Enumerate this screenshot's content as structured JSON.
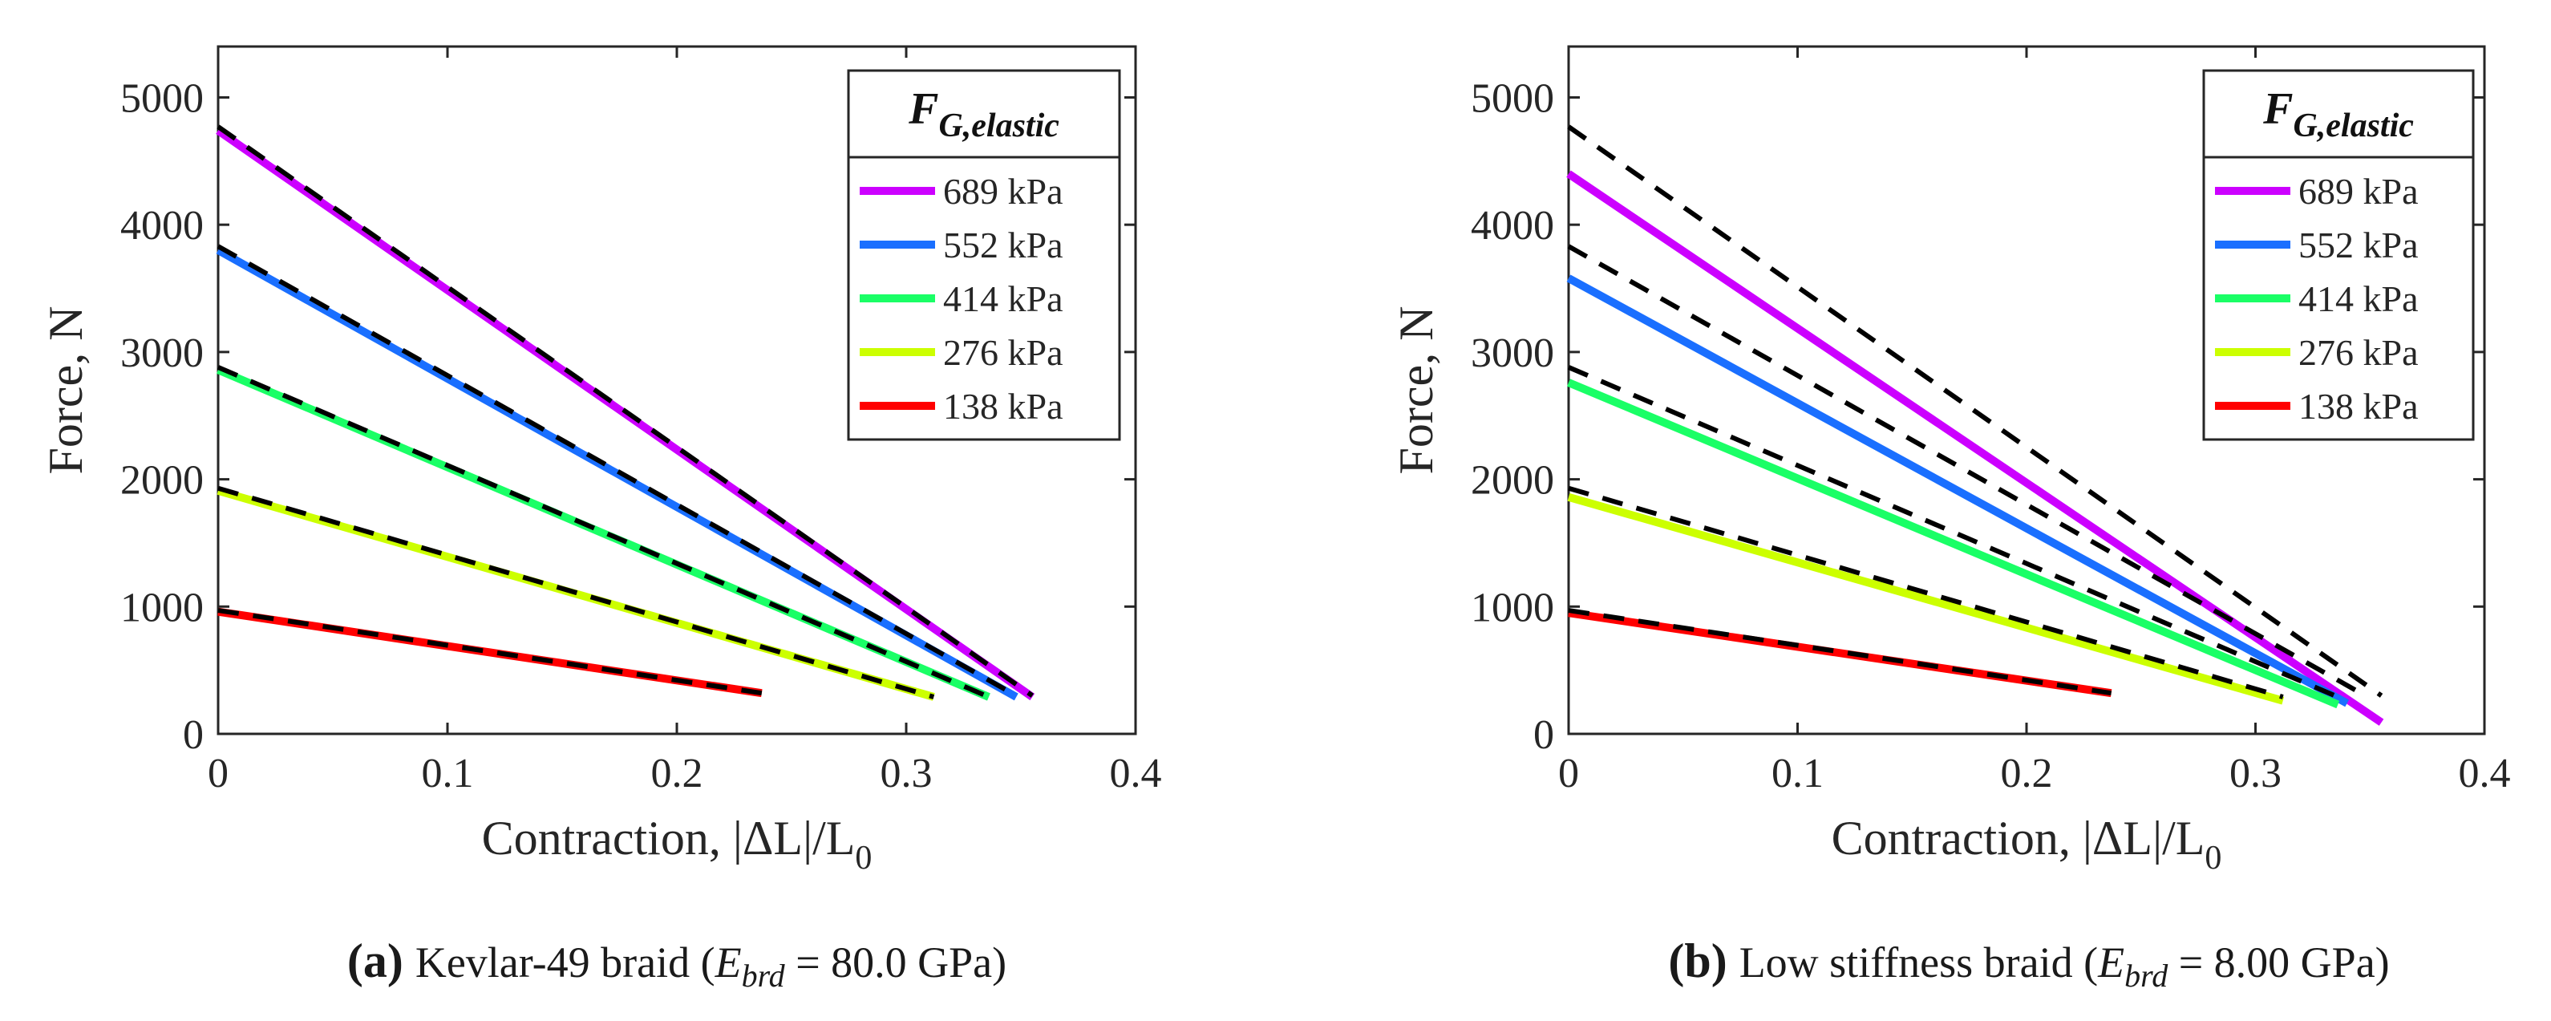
{
  "chart_data": [
    {
      "id": "a",
      "type": "line",
      "xlabel_main": "Contraction, |ΔL|/L",
      "xlabel_sub": "0",
      "ylabel": "Force, N",
      "xlim": [
        0,
        0.4
      ],
      "ylim": [
        0,
        5400
      ],
      "xticks": [
        0,
        0.1,
        0.2,
        0.3,
        0.4
      ],
      "xtick_labels": [
        "0",
        "0.1",
        "0.2",
        "0.3",
        "0.4"
      ],
      "yticks": [
        0,
        1000,
        2000,
        3000,
        4000,
        5000
      ],
      "ytick_labels": [
        "0",
        "1000",
        "2000",
        "3000",
        "4000",
        "5000"
      ],
      "grid": false,
      "legend": {
        "placement": "top-right",
        "title_main": "F",
        "title_sub": "G,elastic",
        "entries": [
          "689 kPa",
          "552 kPa",
          "414 kPa",
          "276 kPa",
          "138 kPa"
        ]
      },
      "series": [
        {
          "name": "689 kPa",
          "color": "#cc00ff",
          "x": [
            0,
            0.355
          ],
          "y": [
            4740,
            290
          ]
        },
        {
          "name": "552 kPa",
          "color": "#1a6fff",
          "x": [
            0,
            0.348
          ],
          "y": [
            3800,
            290
          ]
        },
        {
          "name": "414 kPa",
          "color": "#1aff66",
          "x": [
            0,
            0.336
          ],
          "y": [
            2860,
            290
          ]
        },
        {
          "name": "276 kPa",
          "color": "#ccff00",
          "x": [
            0,
            0.312
          ],
          "y": [
            1910,
            290
          ]
        },
        {
          "name": "138 kPa",
          "color": "#ff0000",
          "x": [
            0,
            0.237
          ],
          "y": [
            960,
            320
          ]
        }
      ],
      "reference_lines": [
        {
          "color": "#000000",
          "x": [
            0,
            0.355
          ],
          "y": [
            4770,
            300
          ]
        },
        {
          "color": "#000000",
          "x": [
            0,
            0.348
          ],
          "y": [
            3830,
            300
          ]
        },
        {
          "color": "#000000",
          "x": [
            0,
            0.336
          ],
          "y": [
            2880,
            290
          ]
        },
        {
          "color": "#000000",
          "x": [
            0,
            0.312
          ],
          "y": [
            1930,
            290
          ]
        },
        {
          "color": "#000000",
          "x": [
            0,
            0.237
          ],
          "y": [
            970,
            320
          ]
        }
      ],
      "caption_label": "(a)",
      "caption_text": "Kevlar-49 braid (",
      "caption_math_E": "E",
      "caption_math_sub": "brd",
      "caption_math_rest": " = 80.0 GPa)"
    },
    {
      "id": "b",
      "type": "line",
      "xlabel_main": "Contraction, |ΔL|/L",
      "xlabel_sub": "0",
      "ylabel": "Force, N",
      "xlim": [
        0,
        0.4
      ],
      "ylim": [
        0,
        5400
      ],
      "xticks": [
        0,
        0.1,
        0.2,
        0.3,
        0.4
      ],
      "xtick_labels": [
        "0",
        "0.1",
        "0.2",
        "0.3",
        "0.4"
      ],
      "yticks": [
        0,
        1000,
        2000,
        3000,
        4000,
        5000
      ],
      "ytick_labels": [
        "0",
        "1000",
        "2000",
        "3000",
        "4000",
        "5000"
      ],
      "grid": false,
      "legend": {
        "placement": "top-right",
        "title_main": "F",
        "title_sub": "G,elastic",
        "entries": [
          "689 kPa",
          "552 kPa",
          "414 kPa",
          "276 kPa",
          "138 kPa"
        ]
      },
      "series": [
        {
          "name": "689 kPa",
          "color": "#cc00ff",
          "x": [
            0,
            0.355
          ],
          "y": [
            4400,
            90
          ]
        },
        {
          "name": "552 kPa",
          "color": "#1a6fff",
          "x": [
            0,
            0.34
          ],
          "y": [
            3580,
            240
          ]
        },
        {
          "name": "414 kPa",
          "color": "#1aff66",
          "x": [
            0,
            0.336
          ],
          "y": [
            2760,
            230
          ]
        },
        {
          "name": "276 kPa",
          "color": "#ccff00",
          "x": [
            0,
            0.312
          ],
          "y": [
            1860,
            260
          ]
        },
        {
          "name": "138 kPa",
          "color": "#ff0000",
          "x": [
            0,
            0.237
          ],
          "y": [
            950,
            320
          ]
        }
      ],
      "reference_lines": [
        {
          "color": "#000000",
          "x": [
            0,
            0.355
          ],
          "y": [
            4770,
            300
          ]
        },
        {
          "color": "#000000",
          "x": [
            0,
            0.348
          ],
          "y": [
            3830,
            300
          ]
        },
        {
          "color": "#000000",
          "x": [
            0,
            0.336
          ],
          "y": [
            2880,
            290
          ]
        },
        {
          "color": "#000000",
          "x": [
            0,
            0.312
          ],
          "y": [
            1930,
            290
          ]
        },
        {
          "color": "#000000",
          "x": [
            0,
            0.237
          ],
          "y": [
            970,
            320
          ]
        }
      ],
      "caption_label": "(b)",
      "caption_text": "Low stiffness braid (",
      "caption_math_E": "E",
      "caption_math_sub": "brd",
      "caption_math_rest": " = 8.00 GPa)"
    }
  ]
}
